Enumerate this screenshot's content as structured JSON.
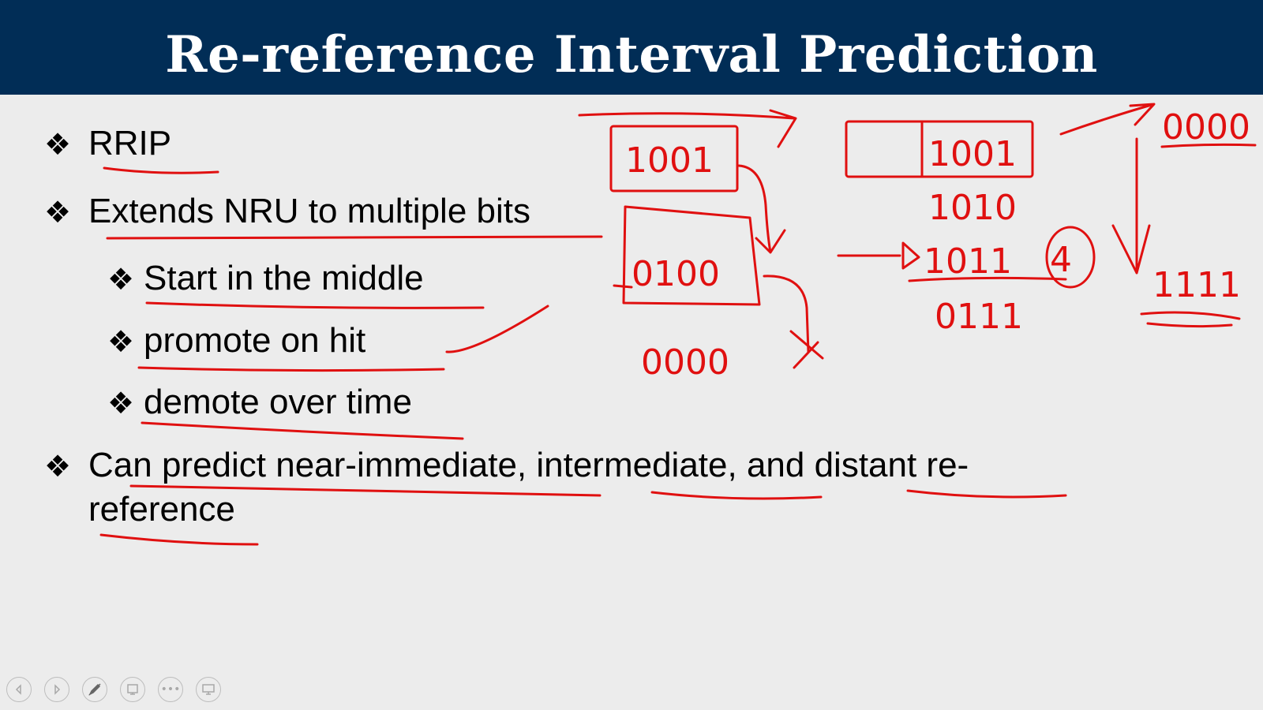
{
  "slide": {
    "title": "Re-reference Interval Prediction",
    "bullet_marker": "❖",
    "bullets": [
      {
        "text": "RRIP"
      },
      {
        "text": "Extends NRU to multiple bits"
      },
      {
        "text": "Start in the middle"
      },
      {
        "text": "promote on hit"
      },
      {
        "text": "demote over time"
      },
      {
        "text": "Can predict near-immediate, intermediate, and distant re-reference"
      }
    ]
  },
  "annotations": {
    "color": "#e01010",
    "box_a": "1001",
    "box_b": "0100",
    "below_b": "0000",
    "box_c": "1001",
    "c_line1": "1010",
    "c_line2": "1011",
    "c_circled": "4",
    "c_line3": "0111",
    "top_right": "0000",
    "bottom_right": "1111"
  },
  "toolbar": {
    "buttons": [
      "previous-icon",
      "next-icon",
      "pen-icon",
      "slide-sorter-icon",
      "more-icon",
      "presenter-view-icon"
    ],
    "more_label": "•••"
  },
  "colors": {
    "title_bar": "#012d56",
    "background": "#ececec"
  }
}
